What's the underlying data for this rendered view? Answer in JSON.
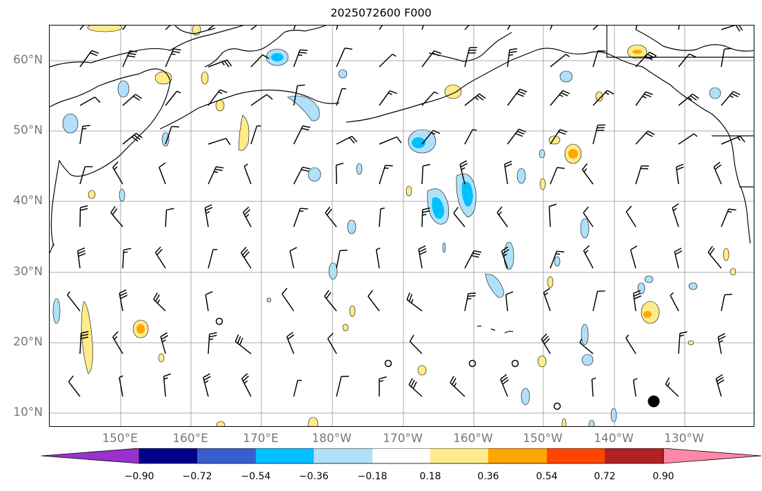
{
  "title": "2025072600 F000",
  "lat_labels": [
    "60°N",
    "50°N",
    "40°N",
    "30°N",
    "20°N",
    "10°N"
  ],
  "lon_labels": [
    "150°E",
    "160°E",
    "170°E",
    "180°W",
    "170°W",
    "160°W",
    "150°W",
    "140°W",
    "130°W"
  ],
  "colorbar": {
    "ticks": [
      "−0.90",
      "−0.72",
      "−0.54",
      "−0.36",
      "−0.18",
      "0.18",
      "0.36",
      "0.54",
      "0.72",
      "0.90"
    ],
    "colors": [
      "#9932cc",
      "#00008b",
      "#3a5fcd",
      "#00bfff",
      "#b0e0fa",
      "#ffffff",
      "#ffeb8a",
      "#ffa500",
      "#ff4500",
      "#b22222",
      "#ff88aa"
    ]
  },
  "legend_icons": [
    "wind-barb-icon",
    "calm-circle-icon"
  ]
}
